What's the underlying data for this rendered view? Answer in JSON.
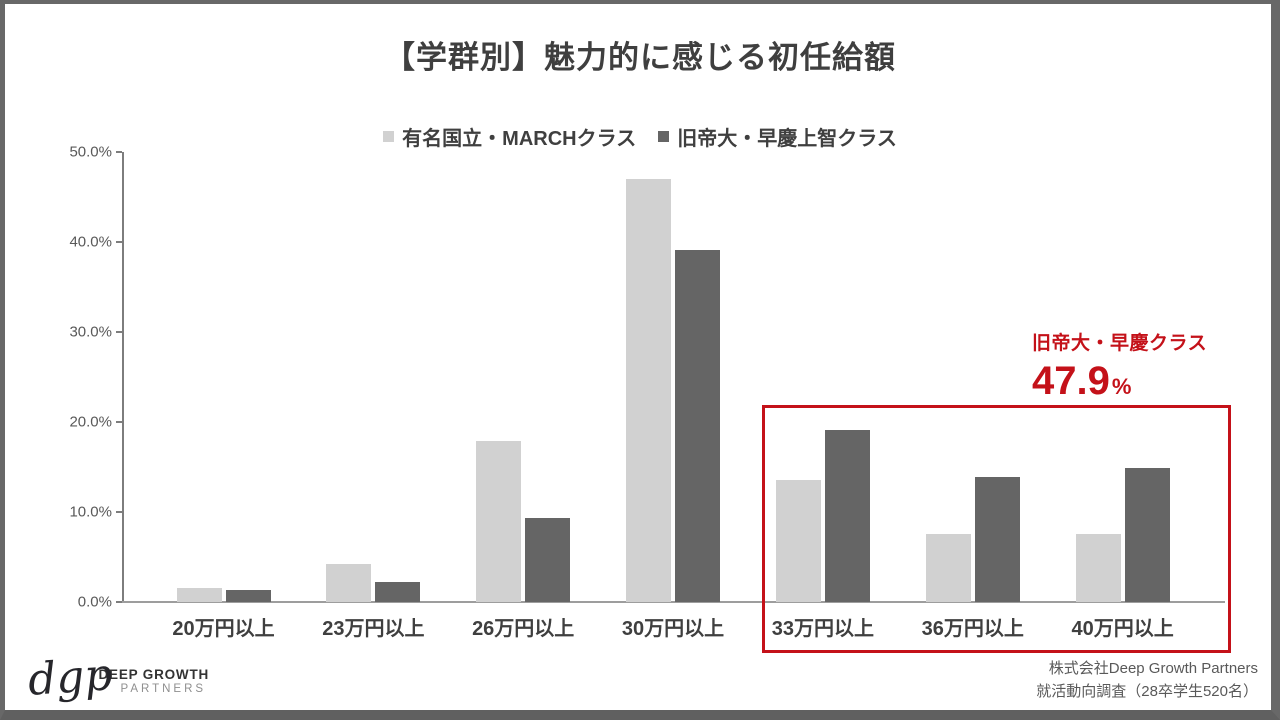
{
  "slide": {
    "title": "【学群別】魅力的に感じる初任給額"
  },
  "legend": {
    "items": [
      {
        "label": "有名国立・MARCHクラス",
        "color": "#d1d1d1"
      },
      {
        "label": "旧帝大・早慶上智クラス",
        "color": "#656565"
      }
    ]
  },
  "chart_data": {
    "type": "bar",
    "title": "【学群別】魅力的に感じる初任給額",
    "categories": [
      "20万円以上",
      "23万円以上",
      "26万円以上",
      "30万円以上",
      "33万円以上",
      "36万円以上",
      "40万円以上"
    ],
    "series": [
      {
        "name": "有名国立・MARCHクラス",
        "color": "#d1d1d1",
        "values": [
          1.6,
          4.2,
          17.9,
          47.0,
          13.6,
          7.6,
          7.6
        ]
      },
      {
        "name": "旧帝大・早慶上智クラス",
        "color": "#656565",
        "values": [
          1.3,
          2.2,
          9.3,
          39.1,
          19.1,
          13.9,
          14.9
        ]
      }
    ],
    "xlabel": "",
    "ylabel": "",
    "ylim": [
      0,
      50
    ],
    "ytick_labels": [
      "0.0%",
      "10.0%",
      "20.0%",
      "30.0%",
      "40.0%",
      "50.0%"
    ],
    "grid": false,
    "legend_position": "top",
    "highlighted_categories": [
      "33万円以上",
      "36万円以上",
      "40万円以上"
    ]
  },
  "annotation": {
    "label": "旧帝大・早慶クラス",
    "value": "47.9",
    "unit": "%",
    "color": "#c41119"
  },
  "footer": {
    "logo_script": "dgp",
    "logo_line1": "DEEP GROWTH",
    "logo_line2": "PARTNERS",
    "source_line1": "株式会社Deep Growth Partners",
    "source_line2": "就活動向調査（28卒学生520名）"
  }
}
